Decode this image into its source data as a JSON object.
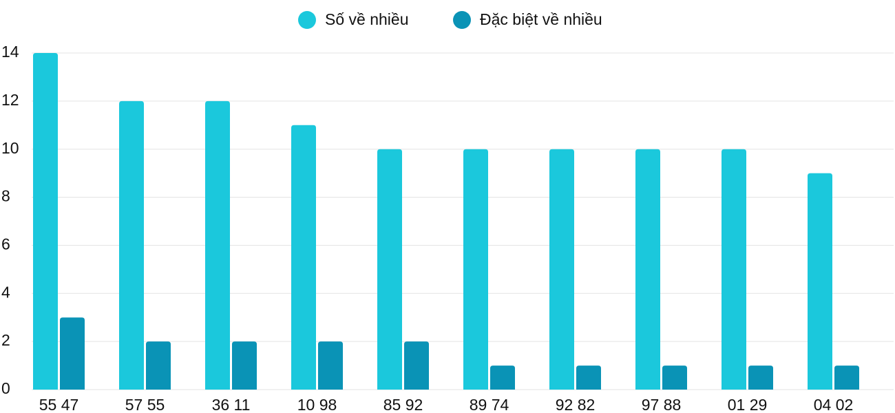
{
  "chart_data": {
    "type": "bar",
    "categories": [
      "55 47",
      "57 55",
      "36 11",
      "10 98",
      "85 92",
      "89 74",
      "92 82",
      "97 88",
      "01 29",
      "04 02"
    ],
    "series": [
      {
        "name": "Số về nhiều",
        "color": "#1bc8dc",
        "values": [
          14,
          12,
          12,
          11,
          10,
          10,
          10,
          10,
          10,
          9
        ]
      },
      {
        "name": "Đặc biệt về nhiều",
        "color": "#0a93b6",
        "values": [
          3,
          2,
          2,
          2,
          2,
          1,
          1,
          1,
          1,
          1
        ]
      }
    ],
    "ylim": [
      0,
      14
    ],
    "yticks": [
      0,
      2,
      4,
      6,
      8,
      10,
      12,
      14
    ],
    "grid": true,
    "legend": "top"
  }
}
